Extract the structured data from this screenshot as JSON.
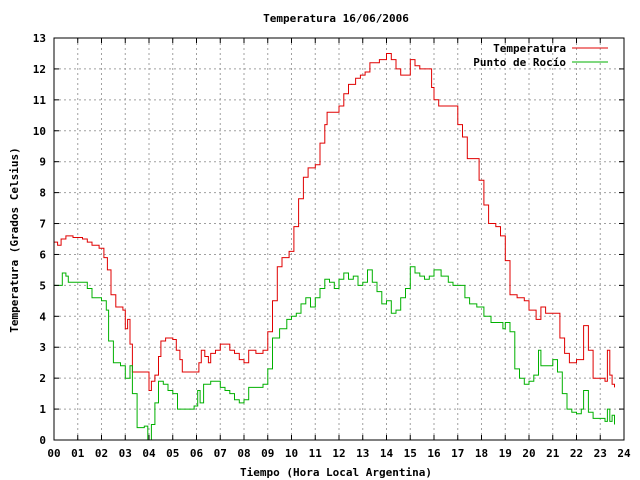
{
  "chart_data": {
    "type": "line",
    "title": "Temperatura 16/06/2006",
    "xlabel": "Tiempo (Hora Local Argentina)",
    "ylabel": "Temperatura (Grados Celsius)",
    "xlim": [
      0,
      24
    ],
    "ylim": [
      0,
      13
    ],
    "x_ticks": [
      "00",
      "01",
      "02",
      "03",
      "04",
      "05",
      "06",
      "07",
      "08",
      "09",
      "10",
      "11",
      "12",
      "13",
      "14",
      "15",
      "16",
      "17",
      "18",
      "19",
      "20",
      "21",
      "22",
      "23",
      "24"
    ],
    "y_ticks": [
      "0",
      "1",
      "2",
      "3",
      "4",
      "5",
      "6",
      "7",
      "8",
      "9",
      "10",
      "11",
      "12",
      "13"
    ],
    "grid": true,
    "legend_position": "top-right",
    "series": [
      {
        "name": "Temperatura",
        "color": "#e00000",
        "points": [
          [
            0.0,
            6.4
          ],
          [
            0.15,
            6.3
          ],
          [
            0.3,
            6.5
          ],
          [
            0.5,
            6.6
          ],
          [
            0.8,
            6.55
          ],
          [
            1.2,
            6.5
          ],
          [
            1.4,
            6.4
          ],
          [
            1.6,
            6.3
          ],
          [
            1.9,
            6.2
          ],
          [
            2.1,
            5.9
          ],
          [
            2.25,
            5.5
          ],
          [
            2.4,
            4.7
          ],
          [
            2.6,
            4.3
          ],
          [
            2.9,
            4.2
          ],
          [
            3.0,
            3.6
          ],
          [
            3.1,
            3.9
          ],
          [
            3.2,
            3.1
          ],
          [
            3.3,
            2.2
          ],
          [
            3.5,
            2.2
          ],
          [
            3.8,
            2.2
          ],
          [
            4.0,
            1.6
          ],
          [
            4.1,
            1.9
          ],
          [
            4.25,
            2.1
          ],
          [
            4.4,
            2.7
          ],
          [
            4.5,
            3.2
          ],
          [
            4.7,
            3.3
          ],
          [
            5.0,
            3.25
          ],
          [
            5.15,
            2.9
          ],
          [
            5.3,
            2.6
          ],
          [
            5.4,
            2.2
          ],
          [
            5.7,
            2.2
          ],
          [
            6.0,
            2.2
          ],
          [
            6.1,
            2.5
          ],
          [
            6.2,
            2.9
          ],
          [
            6.35,
            2.7
          ],
          [
            6.5,
            2.5
          ],
          [
            6.6,
            2.8
          ],
          [
            6.8,
            2.9
          ],
          [
            7.0,
            3.1
          ],
          [
            7.2,
            3.1
          ],
          [
            7.4,
            2.9
          ],
          [
            7.6,
            2.8
          ],
          [
            7.8,
            2.6
          ],
          [
            8.0,
            2.5
          ],
          [
            8.2,
            2.9
          ],
          [
            8.5,
            2.8
          ],
          [
            8.8,
            2.9
          ],
          [
            9.0,
            3.5
          ],
          [
            9.2,
            4.5
          ],
          [
            9.4,
            5.6
          ],
          [
            9.6,
            5.9
          ],
          [
            9.9,
            6.1
          ],
          [
            10.1,
            6.9
          ],
          [
            10.3,
            7.8
          ],
          [
            10.5,
            8.5
          ],
          [
            10.7,
            8.8
          ],
          [
            11.0,
            8.9
          ],
          [
            11.2,
            9.6
          ],
          [
            11.4,
            10.2
          ],
          [
            11.5,
            10.6
          ],
          [
            11.8,
            10.6
          ],
          [
            12.0,
            10.8
          ],
          [
            12.2,
            11.2
          ],
          [
            12.4,
            11.5
          ],
          [
            12.7,
            11.7
          ],
          [
            12.9,
            11.8
          ],
          [
            13.1,
            11.9
          ],
          [
            13.3,
            12.2
          ],
          [
            13.5,
            12.2
          ],
          [
            13.7,
            12.3
          ],
          [
            14.0,
            12.5
          ],
          [
            14.2,
            12.3
          ],
          [
            14.4,
            12.0
          ],
          [
            14.6,
            11.8
          ],
          [
            14.8,
            11.8
          ],
          [
            15.0,
            12.3
          ],
          [
            15.2,
            12.1
          ],
          [
            15.4,
            12.0
          ],
          [
            15.7,
            12.0
          ],
          [
            15.9,
            11.4
          ],
          [
            16.0,
            11.0
          ],
          [
            16.2,
            10.8
          ],
          [
            16.5,
            10.8
          ],
          [
            16.8,
            10.8
          ],
          [
            17.0,
            10.2
          ],
          [
            17.2,
            9.8
          ],
          [
            17.4,
            9.1
          ],
          [
            17.7,
            9.1
          ],
          [
            17.9,
            8.4
          ],
          [
            18.1,
            7.6
          ],
          [
            18.3,
            7.0
          ],
          [
            18.6,
            6.9
          ],
          [
            18.8,
            6.6
          ],
          [
            19.0,
            5.8
          ],
          [
            19.2,
            4.7
          ],
          [
            19.5,
            4.6
          ],
          [
            19.8,
            4.5
          ],
          [
            20.0,
            4.2
          ],
          [
            20.3,
            3.9
          ],
          [
            20.5,
            4.3
          ],
          [
            20.7,
            4.1
          ],
          [
            21.0,
            4.1
          ],
          [
            21.3,
            3.3
          ],
          [
            21.5,
            2.8
          ],
          [
            21.7,
            2.5
          ],
          [
            22.0,
            2.6
          ],
          [
            22.2,
            2.6
          ],
          [
            22.3,
            3.7
          ],
          [
            22.5,
            2.9
          ],
          [
            22.7,
            2.0
          ],
          [
            23.0,
            2.0
          ],
          [
            23.2,
            1.9
          ],
          [
            23.3,
            2.9
          ],
          [
            23.4,
            2.1
          ],
          [
            23.5,
            1.8
          ],
          [
            23.6,
            1.7
          ]
        ]
      },
      {
        "name": "Punto de Rocío",
        "color": "#00b000",
        "points": [
          [
            0.0,
            5.0
          ],
          [
            0.2,
            5.0
          ],
          [
            0.35,
            5.4
          ],
          [
            0.5,
            5.3
          ],
          [
            0.6,
            5.1
          ],
          [
            1.0,
            5.1
          ],
          [
            1.3,
            5.1
          ],
          [
            1.4,
            4.9
          ],
          [
            1.6,
            4.6
          ],
          [
            2.0,
            4.5
          ],
          [
            2.2,
            4.2
          ],
          [
            2.3,
            3.2
          ],
          [
            2.5,
            2.5
          ],
          [
            2.8,
            2.4
          ],
          [
            3.0,
            2.0
          ],
          [
            3.2,
            2.4
          ],
          [
            3.3,
            1.5
          ],
          [
            3.5,
            0.4
          ],
          [
            3.8,
            0.45
          ],
          [
            3.95,
            0.0
          ],
          [
            4.1,
            0.5
          ],
          [
            4.25,
            1.2
          ],
          [
            4.4,
            1.9
          ],
          [
            4.6,
            1.8
          ],
          [
            4.8,
            1.6
          ],
          [
            5.0,
            1.5
          ],
          [
            5.2,
            1.0
          ],
          [
            5.6,
            1.0
          ],
          [
            5.9,
            1.1
          ],
          [
            6.05,
            1.6
          ],
          [
            6.15,
            1.2
          ],
          [
            6.3,
            1.8
          ],
          [
            6.6,
            1.9
          ],
          [
            7.0,
            1.7
          ],
          [
            7.2,
            1.6
          ],
          [
            7.4,
            1.5
          ],
          [
            7.6,
            1.3
          ],
          [
            7.8,
            1.2
          ],
          [
            8.0,
            1.3
          ],
          [
            8.2,
            1.7
          ],
          [
            8.5,
            1.7
          ],
          [
            8.8,
            1.8
          ],
          [
            9.0,
            2.3
          ],
          [
            9.2,
            3.3
          ],
          [
            9.5,
            3.6
          ],
          [
            9.8,
            3.9
          ],
          [
            10.0,
            4.0
          ],
          [
            10.2,
            4.1
          ],
          [
            10.4,
            4.4
          ],
          [
            10.6,
            4.6
          ],
          [
            10.8,
            4.3
          ],
          [
            11.0,
            4.6
          ],
          [
            11.2,
            4.9
          ],
          [
            11.4,
            5.2
          ],
          [
            11.6,
            5.1
          ],
          [
            11.8,
            4.9
          ],
          [
            12.0,
            5.2
          ],
          [
            12.2,
            5.4
          ],
          [
            12.4,
            5.2
          ],
          [
            12.6,
            5.3
          ],
          [
            12.8,
            5.0
          ],
          [
            13.0,
            5.1
          ],
          [
            13.2,
            5.5
          ],
          [
            13.4,
            5.1
          ],
          [
            13.6,
            4.8
          ],
          [
            13.8,
            4.4
          ],
          [
            14.0,
            4.5
          ],
          [
            14.2,
            4.1
          ],
          [
            14.4,
            4.2
          ],
          [
            14.6,
            4.6
          ],
          [
            14.8,
            4.9
          ],
          [
            15.0,
            5.6
          ],
          [
            15.2,
            5.4
          ],
          [
            15.4,
            5.3
          ],
          [
            15.6,
            5.2
          ],
          [
            15.8,
            5.3
          ],
          [
            16.0,
            5.5
          ],
          [
            16.3,
            5.3
          ],
          [
            16.6,
            5.1
          ],
          [
            16.8,
            5.0
          ],
          [
            17.1,
            5.0
          ],
          [
            17.3,
            4.6
          ],
          [
            17.5,
            4.4
          ],
          [
            17.8,
            4.3
          ],
          [
            18.1,
            4.0
          ],
          [
            18.4,
            3.8
          ],
          [
            18.7,
            3.8
          ],
          [
            18.9,
            3.6
          ],
          [
            19.0,
            3.8
          ],
          [
            19.2,
            3.5
          ],
          [
            19.4,
            2.3
          ],
          [
            19.6,
            2.0
          ],
          [
            19.8,
            1.8
          ],
          [
            20.0,
            1.9
          ],
          [
            20.2,
            2.1
          ],
          [
            20.4,
            2.9
          ],
          [
            20.5,
            2.4
          ],
          [
            20.7,
            2.4
          ],
          [
            21.0,
            2.6
          ],
          [
            21.2,
            2.2
          ],
          [
            21.4,
            1.5
          ],
          [
            21.6,
            1.0
          ],
          [
            21.8,
            0.9
          ],
          [
            22.0,
            0.85
          ],
          [
            22.2,
            1.0
          ],
          [
            22.3,
            1.6
          ],
          [
            22.5,
            0.9
          ],
          [
            22.7,
            0.7
          ],
          [
            23.0,
            0.7
          ],
          [
            23.2,
            0.6
          ],
          [
            23.3,
            1.0
          ],
          [
            23.4,
            0.6
          ],
          [
            23.5,
            0.8
          ],
          [
            23.6,
            0.5
          ]
        ]
      }
    ]
  }
}
